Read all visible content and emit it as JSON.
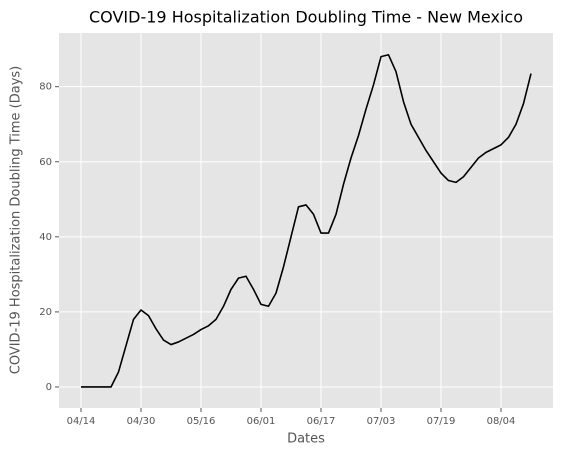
{
  "chart_data": {
    "type": "line",
    "title": "COVID-19 Hospitalization Doubling Time - New Mexico",
    "xlabel": "Dates",
    "ylabel": "COVID-19 Hospitalization Doubling Time (Days)",
    "x": [
      "04/14",
      "04/16",
      "04/18",
      "04/20",
      "04/22",
      "04/24",
      "04/26",
      "04/28",
      "04/30",
      "05/02",
      "05/04",
      "05/06",
      "05/08",
      "05/10",
      "05/12",
      "05/14",
      "05/16",
      "05/18",
      "05/20",
      "05/22",
      "05/24",
      "05/26",
      "05/28",
      "05/30",
      "06/01",
      "06/03",
      "06/05",
      "06/07",
      "06/09",
      "06/11",
      "06/13",
      "06/15",
      "06/17",
      "06/19",
      "06/21",
      "06/23",
      "06/25",
      "06/27",
      "06/29",
      "07/01",
      "07/03",
      "07/05",
      "07/07",
      "07/09",
      "07/11",
      "07/13",
      "07/15",
      "07/17",
      "07/19",
      "07/21",
      "07/23",
      "07/25",
      "07/27",
      "07/29",
      "07/31",
      "08/02",
      "08/04",
      "08/06",
      "08/08",
      "08/10",
      "08/12"
    ],
    "series": [
      {
        "color": "#000000",
        "values": [
          0,
          0,
          0,
          0,
          0,
          4,
          11,
          18,
          20.5,
          19,
          15.5,
          12.5,
          11.3,
          12,
          13,
          14,
          15.3,
          16.3,
          18,
          21.5,
          26,
          29,
          29.5,
          26,
          22,
          21.5,
          25,
          32,
          40,
          48,
          48.5,
          46,
          41,
          41,
          46,
          54,
          61,
          67,
          74,
          80.5,
          88,
          88.5,
          84,
          76,
          70,
          66.5,
          63,
          60,
          57,
          55,
          54.5,
          56,
          58.5,
          61,
          62.5,
          63.5,
          64.5,
          66.5,
          70,
          75.5,
          83.5
        ]
      }
    ],
    "xticks": [
      "04/14",
      "04/30",
      "05/16",
      "06/01",
      "06/17",
      "07/03",
      "07/19",
      "08/04"
    ],
    "ylim": [
      -5.6,
      94.3
    ],
    "yticks": [
      0,
      20,
      40,
      60,
      80
    ],
    "grid": true
  }
}
